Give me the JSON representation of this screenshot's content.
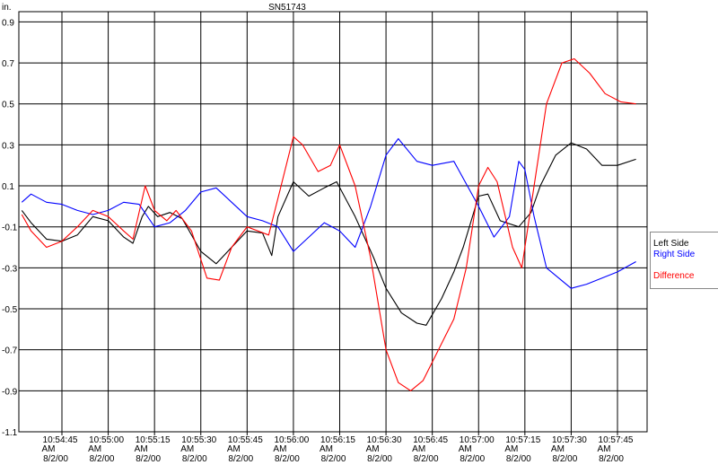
{
  "chart_data": {
    "type": "line",
    "title": "SN51743",
    "ylabel": "in.",
    "xlabel": "",
    "ylim": [
      -1.1,
      0.95
    ],
    "yticks": [
      "0.9",
      "0.7",
      "0.5",
      "0.3",
      "0.1",
      "-0.1",
      "-0.3",
      "-0.5",
      "-0.7",
      "-0.9",
      "-1.1"
    ],
    "xtick_times": [
      "10:54:45",
      "10:55:00",
      "10:55:15",
      "10:55:30",
      "10:55:45",
      "10:56:00",
      "10:56:15",
      "10:56:30",
      "10:56:45",
      "10:57:00",
      "10:57:15",
      "10:57:30",
      "10:57:45"
    ],
    "xtick_ampm": "AM",
    "xtick_date": "8/2/00",
    "grid": true,
    "legend_position": "right",
    "series": [
      {
        "name": "Left Side",
        "color": "#000000",
        "points": [
          [
            "10:54:32",
            -0.02
          ],
          [
            "10:54:35",
            -0.08
          ],
          [
            "10:54:40",
            -0.16
          ],
          [
            "10:54:45",
            -0.17
          ],
          [
            "10:54:50",
            -0.14
          ],
          [
            "10:54:55",
            -0.05
          ],
          [
            "10:55:00",
            -0.07
          ],
          [
            "10:55:05",
            -0.15
          ],
          [
            "10:55:08",
            -0.18
          ],
          [
            "10:55:11",
            -0.05
          ],
          [
            "10:55:13",
            0.0
          ],
          [
            "10:55:16",
            -0.05
          ],
          [
            "10:55:20",
            -0.03
          ],
          [
            "10:55:24",
            -0.06
          ],
          [
            "10:55:30",
            -0.22
          ],
          [
            "10:55:35",
            -0.28
          ],
          [
            "10:55:40",
            -0.2
          ],
          [
            "10:55:45",
            -0.12
          ],
          [
            "10:55:50",
            -0.13
          ],
          [
            "10:55:53",
            -0.24
          ],
          [
            "10:55:55",
            -0.05
          ],
          [
            "10:56:00",
            0.12
          ],
          [
            "10:56:05",
            0.05
          ],
          [
            "10:56:10",
            0.09
          ],
          [
            "10:56:14",
            0.12
          ],
          [
            "10:56:20",
            -0.05
          ],
          [
            "10:56:26",
            -0.25
          ],
          [
            "10:56:30",
            -0.4
          ],
          [
            "10:56:35",
            -0.52
          ],
          [
            "10:56:40",
            -0.57
          ],
          [
            "10:56:43",
            -0.58
          ],
          [
            "10:56:48",
            -0.45
          ],
          [
            "10:56:52",
            -0.32
          ],
          [
            "10:56:55",
            -0.2
          ],
          [
            "10:57:00",
            0.05
          ],
          [
            "10:57:03",
            0.06
          ],
          [
            "10:57:07",
            -0.07
          ],
          [
            "10:57:13",
            -0.1
          ],
          [
            "10:57:17",
            -0.03
          ],
          [
            "10:57:20",
            0.1
          ],
          [
            "10:57:25",
            0.25
          ],
          [
            "10:57:30",
            0.31
          ],
          [
            "10:57:35",
            0.28
          ],
          [
            "10:57:40",
            0.2
          ],
          [
            "10:57:45",
            0.2
          ],
          [
            "10:57:51",
            0.23
          ]
        ]
      },
      {
        "name": "Right Side",
        "color": "#0000ff",
        "points": [
          [
            "10:54:32",
            0.02
          ],
          [
            "10:54:35",
            0.06
          ],
          [
            "10:54:40",
            0.02
          ],
          [
            "10:54:45",
            0.01
          ],
          [
            "10:54:50",
            -0.02
          ],
          [
            "10:54:55",
            -0.04
          ],
          [
            "10:55:00",
            -0.02
          ],
          [
            "10:55:05",
            0.02
          ],
          [
            "10:55:10",
            0.01
          ],
          [
            "10:55:15",
            -0.1
          ],
          [
            "10:55:20",
            -0.08
          ],
          [
            "10:55:25",
            -0.02
          ],
          [
            "10:55:30",
            0.07
          ],
          [
            "10:55:35",
            0.09
          ],
          [
            "10:55:40",
            0.02
          ],
          [
            "10:55:45",
            -0.05
          ],
          [
            "10:55:50",
            -0.07
          ],
          [
            "10:55:55",
            -0.1
          ],
          [
            "10:56:00",
            -0.22
          ],
          [
            "10:56:05",
            -0.15
          ],
          [
            "10:56:10",
            -0.08
          ],
          [
            "10:56:15",
            -0.12
          ],
          [
            "10:56:20",
            -0.2
          ],
          [
            "10:56:25",
            0.0
          ],
          [
            "10:56:30",
            0.25
          ],
          [
            "10:56:34",
            0.33
          ],
          [
            "10:56:40",
            0.22
          ],
          [
            "10:56:45",
            0.2
          ],
          [
            "10:56:52",
            0.22
          ],
          [
            "10:57:00",
            0.0
          ],
          [
            "10:57:05",
            -0.15
          ],
          [
            "10:57:10",
            -0.05
          ],
          [
            "10:57:13",
            0.22
          ],
          [
            "10:57:15",
            0.18
          ],
          [
            "10:57:18",
            -0.05
          ],
          [
            "10:57:22",
            -0.3
          ],
          [
            "10:57:30",
            -0.4
          ],
          [
            "10:57:35",
            -0.38
          ],
          [
            "10:57:40",
            -0.35
          ],
          [
            "10:57:45",
            -0.32
          ],
          [
            "10:57:51",
            -0.27
          ]
        ]
      },
      {
        "name": "Difference",
        "color": "#ff0000",
        "points": [
          [
            "10:54:32",
            -0.04
          ],
          [
            "10:54:35",
            -0.12
          ],
          [
            "10:54:40",
            -0.2
          ],
          [
            "10:54:45",
            -0.17
          ],
          [
            "10:54:50",
            -0.1
          ],
          [
            "10:54:55",
            -0.02
          ],
          [
            "10:55:00",
            -0.05
          ],
          [
            "10:55:05",
            -0.12
          ],
          [
            "10:55:08",
            -0.16
          ],
          [
            "10:55:12",
            0.1
          ],
          [
            "10:55:15",
            -0.02
          ],
          [
            "10:55:19",
            -0.07
          ],
          [
            "10:55:22",
            -0.02
          ],
          [
            "10:55:27",
            -0.12
          ],
          [
            "10:55:32",
            -0.35
          ],
          [
            "10:55:36",
            -0.36
          ],
          [
            "10:55:40",
            -0.2
          ],
          [
            "10:55:45",
            -0.1
          ],
          [
            "10:55:52",
            -0.14
          ],
          [
            "10:55:56",
            0.1
          ],
          [
            "10:56:00",
            0.34
          ],
          [
            "10:56:03",
            0.3
          ],
          [
            "10:56:08",
            0.17
          ],
          [
            "10:56:12",
            0.2
          ],
          [
            "10:56:15",
            0.3
          ],
          [
            "10:56:20",
            0.1
          ],
          [
            "10:56:25",
            -0.25
          ],
          [
            "10:56:30",
            -0.7
          ],
          [
            "10:56:34",
            -0.86
          ],
          [
            "10:56:38",
            -0.9
          ],
          [
            "10:56:42",
            -0.85
          ],
          [
            "10:56:47",
            -0.7
          ],
          [
            "10:56:52",
            -0.55
          ],
          [
            "10:56:56",
            -0.3
          ],
          [
            "10:57:00",
            0.1
          ],
          [
            "10:57:03",
            0.19
          ],
          [
            "10:57:06",
            0.12
          ],
          [
            "10:57:11",
            -0.2
          ],
          [
            "10:57:14",
            -0.3
          ],
          [
            "10:57:18",
            0.1
          ],
          [
            "10:57:22",
            0.5
          ],
          [
            "10:57:27",
            0.7
          ],
          [
            "10:57:31",
            0.72
          ],
          [
            "10:57:36",
            0.65
          ],
          [
            "10:57:41",
            0.55
          ],
          [
            "10:57:46",
            0.51
          ],
          [
            "10:57:51",
            0.5
          ]
        ]
      }
    ]
  }
}
